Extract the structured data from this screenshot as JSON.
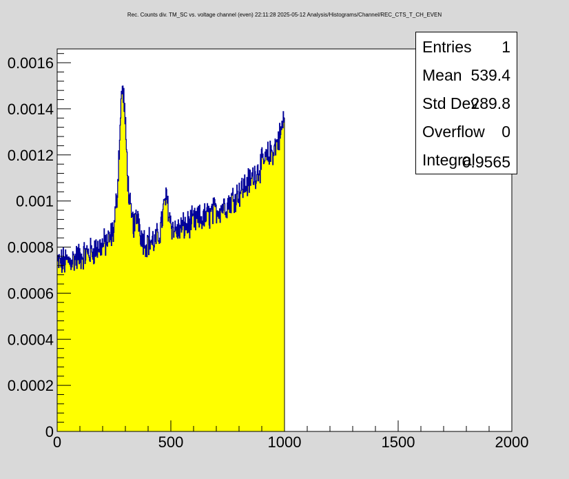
{
  "chart_data": {
    "type": "histogram",
    "title": "Rec. Counts div. TM_SC vs. voltage channel (even)  22:11:28  2025-05-12  Analysis/Histograms/Channel/REC_CTS_T_CH_EVEN",
    "xlabel": "",
    "ylabel": "",
    "xlim": [
      0,
      2000
    ],
    "ylim": [
      0,
      0.00166
    ],
    "x_ticks": [
      "0",
      "500",
      "1000",
      "1500",
      "2000"
    ],
    "y_ticks": [
      "0",
      "0.0002",
      "0.0004",
      "0.0006",
      "0.0008",
      "0.001",
      "0.0012",
      "0.0014",
      "0.0016"
    ],
    "fill_color": "#ffff00",
    "line_color": "#000099",
    "profile_x": [
      0,
      50,
      100,
      150,
      200,
      230,
      250,
      265,
      275,
      285,
      295,
      305,
      315,
      325,
      340,
      355,
      370,
      390,
      410,
      430,
      450,
      465,
      475,
      485,
      495,
      510,
      530,
      560,
      600,
      650,
      700,
      750,
      800,
      850,
      900,
      950,
      980,
      1000
    ],
    "profile_y": [
      0.00073,
      0.00074,
      0.00076,
      0.00078,
      0.00081,
      0.00083,
      0.00088,
      0.00105,
      0.00128,
      0.0015,
      0.00143,
      0.00122,
      0.00103,
      0.00093,
      0.00089,
      0.00095,
      0.00085,
      0.00082,
      0.00083,
      0.00082,
      0.00086,
      0.00094,
      0.00101,
      0.001,
      0.00093,
      0.00088,
      0.00087,
      0.00089,
      0.00091,
      0.00093,
      0.00096,
      0.00099,
      0.00104,
      0.00109,
      0.00116,
      0.00122,
      0.00128,
      0.00137
    ]
  },
  "stats": {
    "entries_label": "Entries",
    "entries_value": "1",
    "mean_label": "Mean",
    "mean_value": "539.4",
    "stddev_label": "Std Dev",
    "stddev_value": "289.8",
    "overflow_label": "Overflow",
    "overflow_value": "0",
    "integral_label": "Integral",
    "integral_value": "0.9565"
  }
}
